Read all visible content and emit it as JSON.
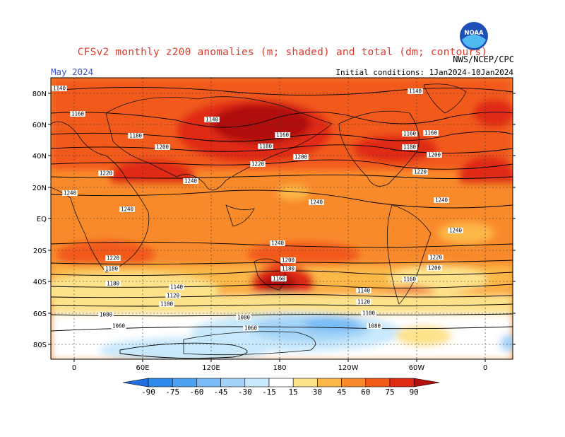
{
  "header": {
    "title": "CFSv2 monthly z200 anomalies (m; shaded) and total (dm; contours)",
    "valid_month": "May 2024",
    "initial_conditions": "Initial conditions: 1Jan2024-10Jan2024",
    "agency": "NWS/NCEP/CPC",
    "logo_text": "NOAA"
  },
  "axes": {
    "lat_labels": [
      "80N",
      "60N",
      "40N",
      "20N",
      "EQ",
      "20S",
      "40S",
      "60S",
      "80S"
    ],
    "lon_labels": [
      "0",
      "60E",
      "120E",
      "180",
      "120W",
      "60W",
      "0"
    ]
  },
  "colorbar": {
    "labels": [
      "-90",
      "-75",
      "-60",
      "-45",
      "-30",
      "-15",
      "15",
      "30",
      "45",
      "60",
      "75",
      "90"
    ],
    "colors": [
      "#1e6fe0",
      "#2f8aee",
      "#4ea2f2",
      "#78bbf6",
      "#a3d3f8",
      "#c8e8fb",
      "#ffffff",
      "#fde28a",
      "#fbb847",
      "#f98a2c",
      "#f25a1a",
      "#e02a14",
      "#b01010"
    ],
    "units": "m"
  },
  "contour_labels": [
    "1140",
    "1140",
    "1140",
    "1160",
    "1160",
    "1160",
    "1160",
    "1180",
    "1180",
    "1180",
    "1200",
    "1200",
    "1200",
    "1220",
    "1220",
    "1220",
    "1240",
    "1240",
    "1240",
    "1240",
    "1240",
    "1240",
    "1240",
    "1220",
    "1220",
    "1200",
    "1200",
    "1180",
    "1180",
    "1180",
    "1160",
    "1160",
    "1140",
    "1140",
    "1120",
    "1120",
    "1100",
    "1100",
    "1080",
    "1080",
    "1080",
    "1060",
    "1060"
  ]
}
